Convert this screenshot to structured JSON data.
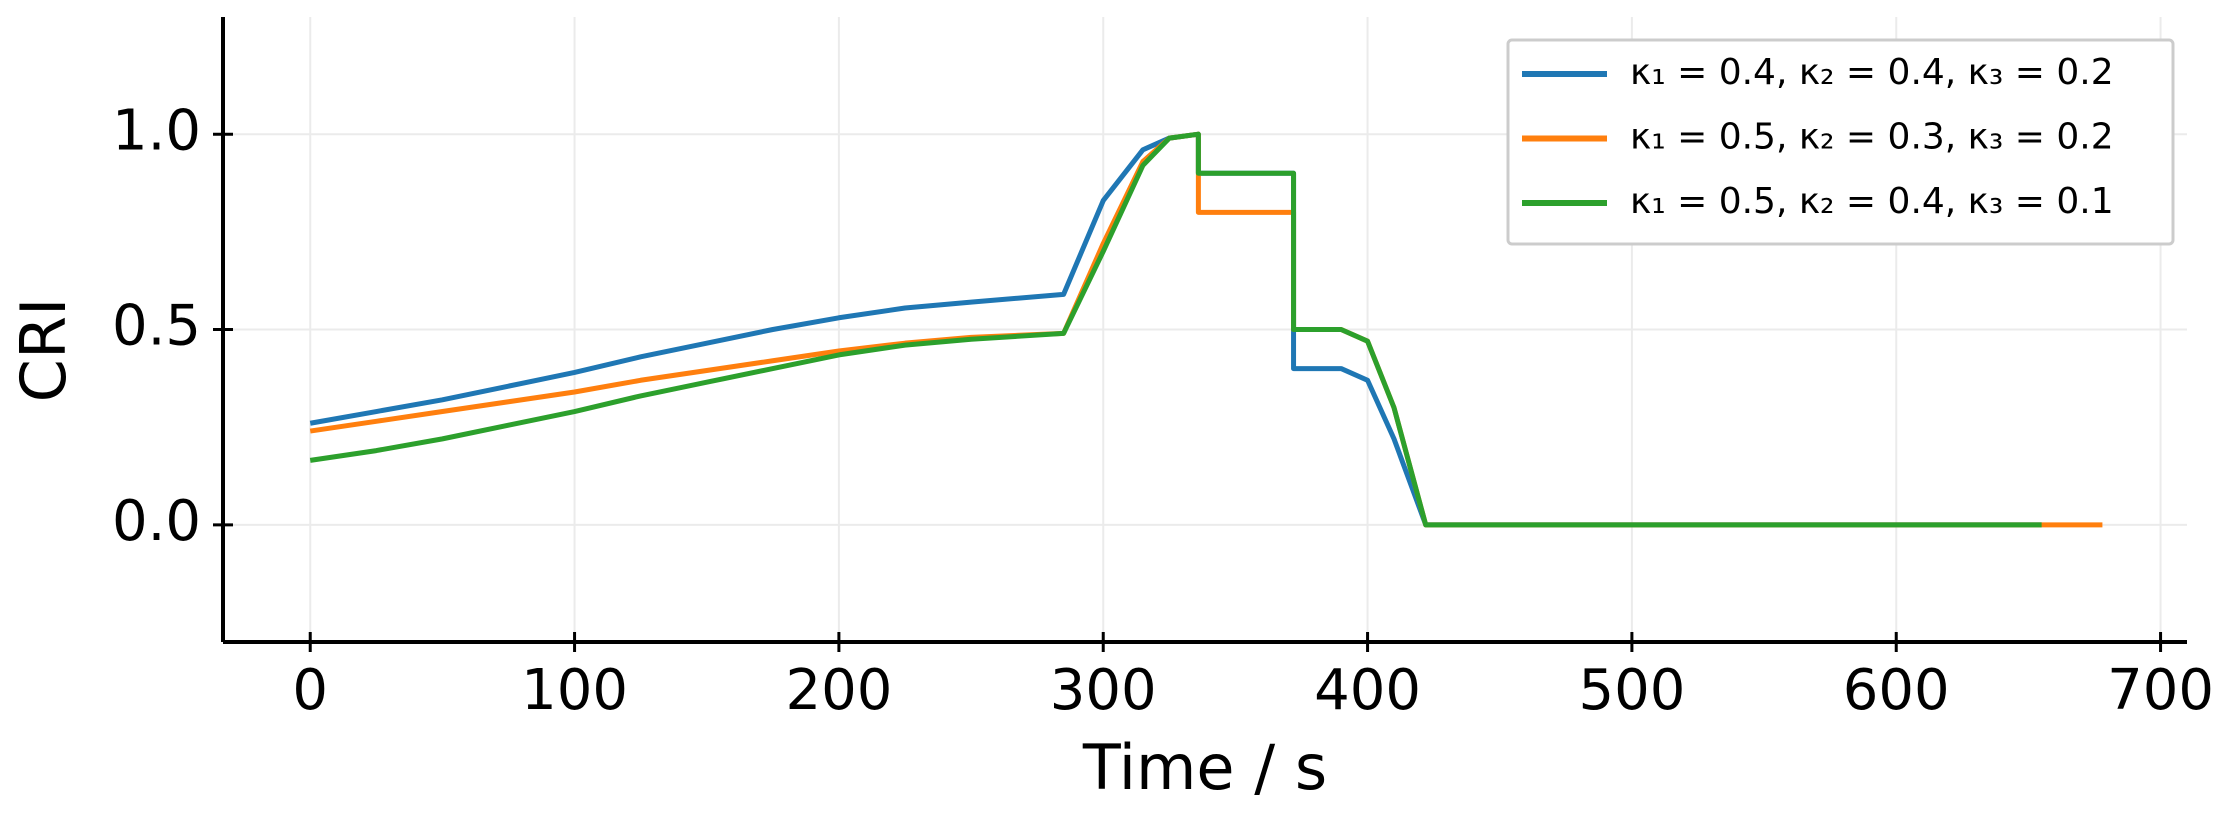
{
  "chart_data": {
    "type": "line",
    "xlabel": "Time / s",
    "ylabel": "CRI",
    "xlim": [
      -33,
      710
    ],
    "ylim": [
      -0.3,
      1.3
    ],
    "xticks": [
      0,
      100,
      200,
      300,
      400,
      500,
      600,
      700
    ],
    "yticks": [
      {
        "value": 0,
        "label": "0.0"
      },
      {
        "value": 0.5,
        "label": "0.5"
      },
      {
        "value": 1,
        "label": "1.0"
      }
    ],
    "grid": true,
    "legend": "upper right",
    "series": [
      {
        "name": "κ₁ = 0.4,  κ₂ = 0.4,  κ₃ = 0.2",
        "color": "#1f77b4",
        "x": [
          0,
          25,
          50,
          75,
          100,
          125,
          150,
          175,
          200,
          225,
          250,
          285,
          300,
          315,
          325,
          336,
          336,
          372,
          372,
          390,
          400,
          410,
          422,
          655
        ],
        "values": [
          0.26,
          0.29,
          0.32,
          0.355,
          0.39,
          0.43,
          0.465,
          0.5,
          0.53,
          0.555,
          0.57,
          0.59,
          0.83,
          0.96,
          0.99,
          1.0,
          0.9,
          0.9,
          0.4,
          0.4,
          0.37,
          0.22,
          0.0,
          0.0
        ]
      },
      {
        "name": "κ₁ = 0.5,  κ₂ = 0.3,  κ₃ = 0.2",
        "color": "#ff7f0e",
        "x": [
          0,
          25,
          50,
          75,
          100,
          125,
          150,
          175,
          200,
          225,
          250,
          285,
          300,
          315,
          325,
          336,
          336,
          372,
          372,
          390,
          400,
          410,
          422,
          678
        ],
        "values": [
          0.24,
          0.265,
          0.29,
          0.315,
          0.34,
          0.37,
          0.395,
          0.42,
          0.445,
          0.465,
          0.48,
          0.49,
          0.72,
          0.93,
          0.99,
          1.0,
          0.8,
          0.8,
          0.5,
          0.5,
          0.47,
          0.3,
          0.0,
          0.0
        ]
      },
      {
        "name": "κ₁ = 0.5,  κ₂ = 0.4,  κ₃ = 0.1",
        "color": "#2ca02c",
        "x": [
          0,
          25,
          50,
          75,
          100,
          125,
          150,
          175,
          200,
          225,
          250,
          285,
          300,
          315,
          325,
          336,
          336,
          372,
          372,
          390,
          400,
          410,
          422,
          655
        ],
        "values": [
          0.165,
          0.19,
          0.22,
          0.255,
          0.29,
          0.33,
          0.365,
          0.4,
          0.435,
          0.46,
          0.475,
          0.49,
          0.7,
          0.92,
          0.99,
          1.0,
          0.9,
          0.9,
          0.5,
          0.5,
          0.47,
          0.3,
          0.0,
          0.0
        ]
      }
    ]
  }
}
